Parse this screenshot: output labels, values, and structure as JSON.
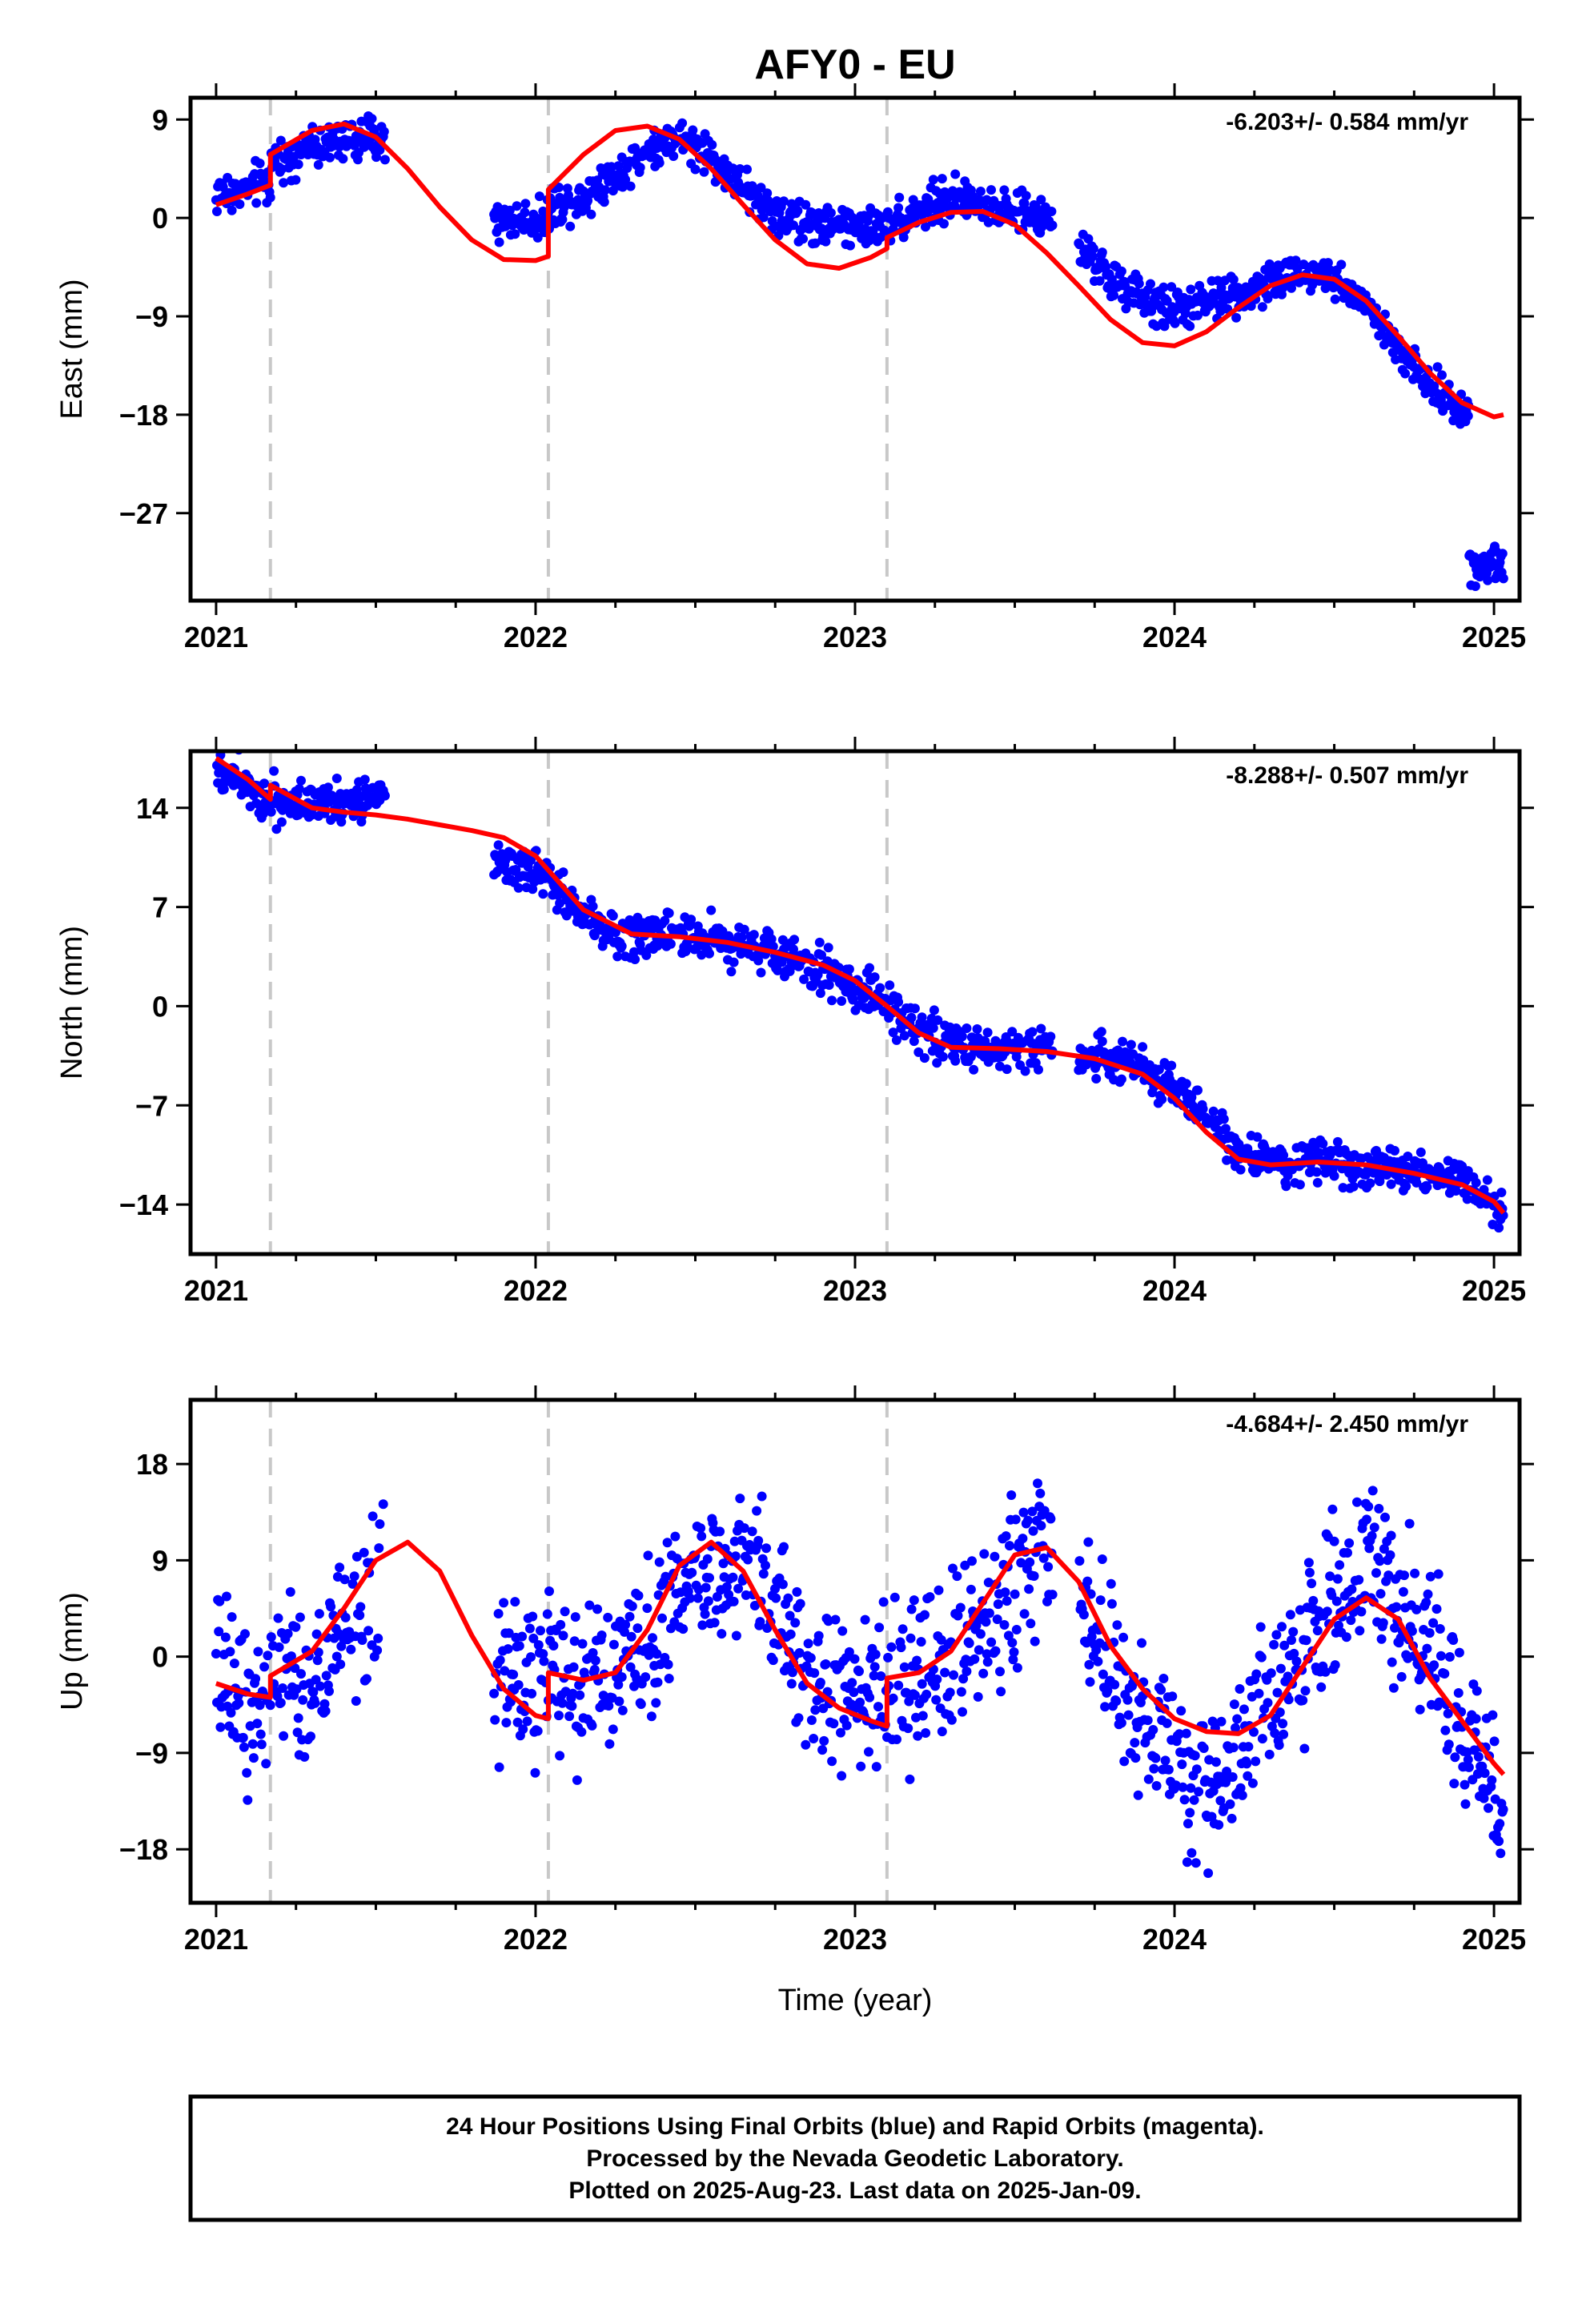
{
  "title": "AFY0 - EU",
  "xlabel": "Time (year)",
  "x_ticks": [
    2021,
    2022,
    2023,
    2024,
    2025
  ],
  "x_tick_labels": [
    "2021",
    "2022",
    "2023",
    "2024",
    "2025"
  ],
  "footer": {
    "line1": "24 Hour Positions Using Final Orbits (blue) and Rapid Orbits (magenta).",
    "line2": "Processed by the Nevada Geodetic Laboratory.",
    "line3": "Plotted on 2025-Aug-23. Last data on 2025-Jan-09."
  },
  "colors": {
    "data": "#0000ff",
    "model": "#ff0000",
    "breaks": "#c8c8c8"
  },
  "chart_data": [
    {
      "type": "scatter",
      "ylabel": "East (mm)",
      "rate_text": "-6.203+/- 0.584 mm/yr",
      "xlim": [
        2020.92,
        2025.08
      ],
      "ylim": [
        -35,
        11
      ],
      "y_ticks": [
        9,
        0,
        -9,
        -18,
        -27
      ],
      "y_tick_labels": [
        "9",
        "0",
        "−9",
        "−18",
        "−27"
      ],
      "equipment_breaks": [
        2021.17,
        2022.04,
        2023.1
      ],
      "data_segments": [
        [
          2021.0,
          2021.53
        ],
        [
          2021.87,
          2022.9
        ],
        [
          2022.9,
          2023.62
        ],
        [
          2023.7,
          2024.92
        ],
        [
          2024.92,
          2025.03
        ]
      ],
      "model": {
        "x": [
          2021.0,
          2021.1,
          2021.17,
          2021.17,
          2021.3,
          2021.4,
          2021.5,
          2021.6,
          2021.7,
          2021.8,
          2021.9,
          2022.0,
          2022.04,
          2022.04,
          2022.15,
          2022.25,
          2022.35,
          2022.45,
          2022.55,
          2022.65,
          2022.75,
          2022.85,
          2022.95,
          2023.05,
          2023.1,
          2023.1,
          2023.2,
          2023.3,
          2023.4,
          2023.5,
          2023.6,
          2023.7,
          2023.8,
          2023.9,
          2024.0,
          2024.1,
          2024.2,
          2024.3,
          2024.4,
          2024.5,
          2024.6,
          2024.7,
          2024.8,
          2024.9,
          2025.0,
          2025.03
        ],
        "y": [
          1.2,
          2.2,
          3.0,
          5.8,
          8.0,
          8.6,
          7.4,
          4.5,
          1.0,
          -2.0,
          -3.8,
          -3.9,
          -3.5,
          2.6,
          5.8,
          8.0,
          8.4,
          7.2,
          4.5,
          1.2,
          -2.0,
          -4.2,
          -4.6,
          -3.6,
          -2.8,
          -1.8,
          -0.4,
          0.5,
          0.6,
          -0.6,
          -3.2,
          -6.2,
          -9.3,
          -11.4,
          -11.7,
          -10.4,
          -8.2,
          -6.2,
          -5.2,
          -5.6,
          -7.6,
          -10.8,
          -14.2,
          -16.9,
          -18.2,
          -18.0
        ]
      },
      "data_trend": {
        "x": [
          2021.0,
          2021.1,
          2021.17,
          2021.17,
          2021.3,
          2021.4,
          2021.53,
          2021.87,
          2021.95,
          2022.04,
          2022.04,
          2022.15,
          2022.25,
          2022.35,
          2022.45,
          2022.55,
          2022.65,
          2022.75,
          2022.85,
          2022.95,
          2023.05,
          2023.1,
          2023.2,
          2023.3,
          2023.4,
          2023.5,
          2023.62,
          2023.7,
          2023.8,
          2023.9,
          2024.0,
          2024.1,
          2024.2,
          2024.3,
          2024.4,
          2024.5,
          2024.6,
          2024.7,
          2024.8,
          2024.92,
          2024.92,
          2025.03
        ],
        "y": [
          2.0,
          2.6,
          3.5,
          5.2,
          6.5,
          7.0,
          7.5,
          -0.5,
          -0.2,
          0.0,
          1.0,
          2.0,
          4.0,
          6.0,
          7.5,
          5.5,
          2.5,
          0.5,
          -0.5,
          -0.7,
          -0.8,
          -0.6,
          0.8,
          1.8,
          1.4,
          0.5,
          -0.2,
          -2.5,
          -5.5,
          -7.5,
          -8.3,
          -7.8,
          -6.8,
          -6.0,
          -4.8,
          -5.3,
          -8.0,
          -12.0,
          -15.5,
          -17.8,
          -31.5,
          -31.5
        ]
      }
    },
    {
      "type": "scatter",
      "ylabel": "North (mm)",
      "rate_text": "-8.288+/- 0.507 mm/yr",
      "xlim": [
        2020.92,
        2025.08
      ],
      "ylim": [
        -17.5,
        18
      ],
      "y_ticks": [
        14,
        7,
        0,
        -7,
        -14
      ],
      "y_tick_labels": [
        "14",
        "7",
        "0",
        "−7",
        "−14"
      ],
      "equipment_breaks": [
        2021.17,
        2022.04,
        2023.1
      ],
      "data_segments": [
        [
          2021.0,
          2021.53
        ],
        [
          2021.87,
          2022.9
        ],
        [
          2022.9,
          2023.62
        ],
        [
          2023.7,
          2025.03
        ]
      ],
      "model": {
        "x": [
          2021.0,
          2021.1,
          2021.17,
          2021.17,
          2021.3,
          2021.4,
          2021.5,
          2021.6,
          2021.7,
          2021.8,
          2021.9,
          2022.0,
          2022.04,
          2022.15,
          2022.3,
          2022.45,
          2022.6,
          2022.75,
          2022.9,
          2023.0,
          2023.1,
          2023.2,
          2023.3,
          2023.45,
          2023.6,
          2023.75,
          2023.9,
          2024.0,
          2024.1,
          2024.2,
          2024.3,
          2024.45,
          2024.6,
          2024.75,
          2024.9,
          2025.0,
          2025.03
        ],
        "y": [
          17.5,
          16.0,
          14.6,
          15.6,
          14.0,
          13.7,
          13.5,
          13.2,
          12.8,
          12.4,
          11.9,
          10.6,
          9.6,
          6.8,
          5.1,
          4.9,
          4.5,
          3.8,
          2.9,
          1.8,
          0.0,
          -1.9,
          -2.9,
          -3.0,
          -3.2,
          -3.7,
          -4.8,
          -6.5,
          -8.9,
          -10.8,
          -11.2,
          -11.0,
          -11.2,
          -11.8,
          -12.6,
          -13.8,
          -14.6
        ]
      },
      "data_trend": {
        "x": [
          2021.0,
          2021.1,
          2021.17,
          2021.3,
          2021.53,
          2021.87,
          2022.0,
          2022.1,
          2022.2,
          2022.3,
          2022.45,
          2022.6,
          2022.75,
          2022.9,
          2023.0,
          2023.1,
          2023.2,
          2023.35,
          2023.62,
          2023.7,
          2023.85,
          2024.0,
          2024.1,
          2024.2,
          2024.3,
          2024.5,
          2024.7,
          2024.9,
          2025.03
        ],
        "y": [
          17.0,
          15.8,
          14.5,
          14.5,
          14.5,
          9.8,
          9.6,
          7.5,
          5.5,
          4.8,
          5.4,
          4.6,
          3.8,
          2.6,
          1.4,
          0.0,
          -1.8,
          -3.0,
          -3.0,
          -3.2,
          -4.0,
          -5.5,
          -8.0,
          -10.2,
          -11.0,
          -11.2,
          -11.6,
          -12.3,
          -14.5
        ]
      }
    },
    {
      "type": "scatter",
      "ylabel": "Up (mm)",
      "rate_text": "-4.684+/- 2.450 mm/yr",
      "xlim": [
        2020.92,
        2025.08
      ],
      "ylim": [
        -23,
        24
      ],
      "y_ticks": [
        18,
        9,
        0,
        -9,
        -18
      ],
      "y_tick_labels": [
        "18",
        "9",
        "0",
        "−9",
        "−18"
      ],
      "equipment_breaks": [
        2021.17,
        2022.04,
        2023.1
      ],
      "data_segments": [
        [
          2021.0,
          2021.53
        ],
        [
          2021.87,
          2023.62
        ],
        [
          2023.7,
          2025.03
        ]
      ],
      "model": {
        "x": [
          2021.0,
          2021.1,
          2021.17,
          2021.17,
          2021.3,
          2021.4,
          2021.5,
          2021.6,
          2021.7,
          2021.8,
          2021.9,
          2022.0,
          2022.04,
          2022.04,
          2022.15,
          2022.25,
          2022.35,
          2022.45,
          2022.55,
          2022.65,
          2022.75,
          2022.85,
          2022.95,
          2023.05,
          2023.1,
          2023.1,
          2023.2,
          2023.3,
          2023.4,
          2023.5,
          2023.6,
          2023.7,
          2023.8,
          2023.9,
          2024.0,
          2024.1,
          2024.2,
          2024.3,
          2024.4,
          2024.5,
          2024.6,
          2024.7,
          2024.8,
          2024.9,
          2025.0,
          2025.03
        ],
        "y": [
          -2.5,
          -3.5,
          -3.8,
          -1.8,
          0.5,
          4.5,
          9.0,
          10.7,
          8.0,
          2.0,
          -3.0,
          -5.5,
          -5.8,
          -1.5,
          -2.2,
          -1.5,
          2.5,
          8.5,
          10.7,
          8.0,
          2.5,
          -2.5,
          -4.8,
          -6.0,
          -6.5,
          -2.0,
          -1.5,
          0.5,
          5.0,
          9.5,
          10.2,
          7.0,
          1.0,
          -3.0,
          -5.8,
          -7.0,
          -7.2,
          -5.5,
          -1.0,
          3.5,
          5.5,
          3.5,
          -2.0,
          -6.0,
          -10.0,
          -11.0
        ]
      },
      "data_trend": {
        "x": [
          2021.0,
          2021.1,
          2021.17,
          2021.3,
          2021.4,
          2021.53,
          2021.87,
          2022.0,
          2022.15,
          2022.3,
          2022.45,
          2022.55,
          2022.7,
          2022.85,
          2023.0,
          2023.1,
          2023.2,
          2023.35,
          2023.5,
          2023.62,
          2023.7,
          2023.85,
          2024.0,
          2024.1,
          2024.2,
          2024.3,
          2024.45,
          2024.6,
          2024.75,
          2024.9,
          2025.03
        ],
        "y": [
          -2.0,
          -3.5,
          -2.5,
          -2.0,
          2.0,
          6.0,
          -1.0,
          -3.0,
          -2.5,
          -1.0,
          6.0,
          9.5,
          7.0,
          -1.0,
          -5.0,
          -3.0,
          -2.0,
          1.0,
          7.0,
          12.0,
          6.0,
          -4.0,
          -10.0,
          -12.5,
          -8.0,
          -4.0,
          2.0,
          9.5,
          3.0,
          -6.0,
          -14.0
        ]
      }
    }
  ]
}
